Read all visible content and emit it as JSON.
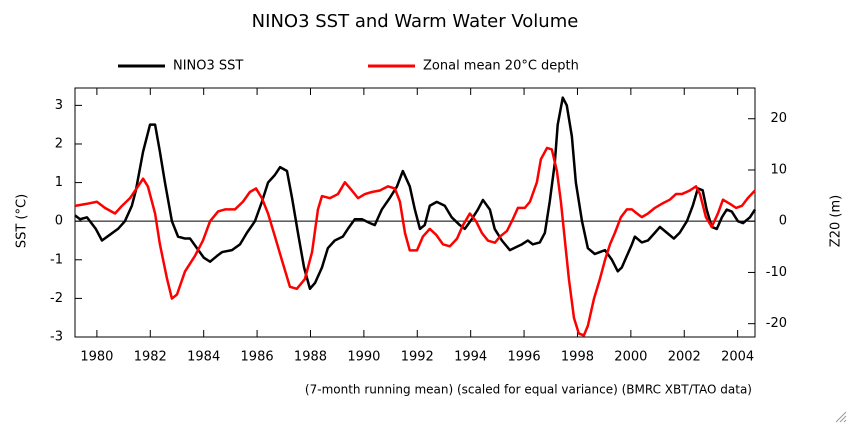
{
  "chart_data": {
    "type": "line",
    "title": "NINO3 SST and Warm Water Volume",
    "y_label": "SST (°C)",
    "y2_label": "Z20 (m)",
    "note": "(7-month running mean) (scaled for equal variance) (BMRC XBT/TAO data)",
    "xlim": [
      1979.18,
      2004.65
    ],
    "xticks": [
      1980,
      1982,
      1984,
      1986,
      1988,
      1990,
      1992,
      1994,
      1996,
      1998,
      2000,
      2002,
      2004
    ],
    "ylim": [
      -3,
      3.45
    ],
    "yticks": [
      -3,
      -2,
      -1,
      0,
      1,
      2,
      3
    ],
    "y2lim": [
      -22.6,
      26
    ],
    "y2ticks": [
      -20,
      -10,
      0,
      10,
      20
    ],
    "zero_line": true,
    "series": [
      {
        "name": "NINO3 SST",
        "color": "#000000",
        "x": [
          1979.18,
          1979.37,
          1979.63,
          1979.96,
          1980.19,
          1980.49,
          1980.79,
          1981.05,
          1981.31,
          1981.46,
          1981.73,
          1981.99,
          1982.18,
          1982.36,
          1982.55,
          1982.81,
          1983.04,
          1983.3,
          1983.49,
          1983.75,
          1984.01,
          1984.24,
          1984.5,
          1984.69,
          1985.06,
          1985.36,
          1985.62,
          1985.92,
          1986.18,
          1986.41,
          1986.67,
          1986.86,
          1987.12,
          1987.31,
          1987.53,
          1987.76,
          1987.98,
          1988.17,
          1988.43,
          1988.65,
          1988.91,
          1989.21,
          1989.4,
          1989.66,
          1989.93,
          1990.23,
          1990.41,
          1990.67,
          1990.97,
          1991.24,
          1991.46,
          1991.72,
          1991.91,
          1992.1,
          1992.28,
          1992.47,
          1992.73,
          1993.03,
          1993.29,
          1993.59,
          1993.78,
          1994.04,
          1994.27,
          1994.46,
          1994.72,
          1994.9,
          1995.17,
          1995.47,
          1995.77,
          1995.92,
          1996.14,
          1996.33,
          1996.59,
          1996.78,
          1996.96,
          1997.15,
          1997.26,
          1997.45,
          1997.6,
          1997.79,
          1997.94,
          1998.17,
          1998.39,
          1998.65,
          1998.84,
          1999.03,
          1999.29,
          1999.51,
          1999.66,
          1999.85,
          2000.04,
          2000.15,
          2000.41,
          2000.64,
          2000.9,
          2001.09,
          2001.35,
          2001.61,
          2001.83,
          2002.1,
          2002.32,
          2002.51,
          2002.69,
          2002.84,
          2003.03,
          2003.22,
          2003.41,
          2003.59,
          2003.78,
          2004.01,
          2004.2,
          2004.46,
          2004.65
        ],
        "values": [
          0.15,
          0.05,
          0.1,
          -0.2,
          -0.5,
          -0.35,
          -0.2,
          0.0,
          0.4,
          0.8,
          1.8,
          2.5,
          2.5,
          1.8,
          1.0,
          0.0,
          -0.4,
          -0.45,
          -0.45,
          -0.7,
          -0.95,
          -1.05,
          -0.9,
          -0.8,
          -0.75,
          -0.6,
          -0.3,
          0.0,
          0.5,
          1.0,
          1.2,
          1.4,
          1.3,
          0.6,
          -0.3,
          -1.2,
          -1.75,
          -1.6,
          -1.2,
          -0.7,
          -0.5,
          -0.4,
          -0.2,
          0.05,
          0.05,
          -0.05,
          -0.1,
          0.3,
          0.6,
          0.9,
          1.3,
          0.9,
          0.3,
          -0.2,
          -0.1,
          0.4,
          0.5,
          0.4,
          0.1,
          -0.1,
          -0.2,
          0.05,
          0.3,
          0.55,
          0.3,
          -0.2,
          -0.5,
          -0.75,
          -0.65,
          -0.6,
          -0.5,
          -0.6,
          -0.55,
          -0.3,
          0.5,
          1.5,
          2.5,
          3.2,
          3.0,
          2.2,
          1.0,
          0.0,
          -0.7,
          -0.85,
          -0.8,
          -0.75,
          -1.0,
          -1.3,
          -1.2,
          -0.9,
          -0.6,
          -0.4,
          -0.55,
          -0.5,
          -0.3,
          -0.15,
          -0.3,
          -0.45,
          -0.3,
          0.0,
          0.4,
          0.85,
          0.8,
          0.3,
          -0.15,
          -0.2,
          0.1,
          0.3,
          0.25,
          0.0,
          -0.05,
          0.1,
          0.3
        ]
      },
      {
        "name": "Zonal mean 20°C depth",
        "color": "#ff0000",
        "axis": "y2",
        "x": [
          1979.18,
          1979.63,
          1980.0,
          1980.3,
          1980.68,
          1980.94,
          1981.24,
          1981.54,
          1981.73,
          1981.91,
          1982.18,
          1982.36,
          1982.63,
          1982.81,
          1983.0,
          1983.3,
          1983.67,
          1983.97,
          1984.24,
          1984.54,
          1984.8,
          1985.17,
          1985.47,
          1985.73,
          1985.96,
          1986.18,
          1986.41,
          1986.67,
          1986.93,
          1987.23,
          1987.49,
          1987.79,
          1988.06,
          1988.28,
          1988.43,
          1988.73,
          1989.03,
          1989.29,
          1989.55,
          1989.78,
          1990.04,
          1990.3,
          1990.6,
          1990.9,
          1991.16,
          1991.35,
          1991.54,
          1991.72,
          1991.99,
          1992.21,
          1992.47,
          1992.7,
          1992.96,
          1993.22,
          1993.49,
          1993.71,
          1993.97,
          1994.2,
          1994.42,
          1994.65,
          1994.91,
          1995.1,
          1995.36,
          1995.58,
          1995.77,
          1996.03,
          1996.22,
          1996.48,
          1996.63,
          1996.86,
          1997.04,
          1997.23,
          1997.38,
          1997.53,
          1997.68,
          1997.87,
          1998.05,
          1998.24,
          1998.39,
          1998.62,
          1998.84,
          1999.03,
          1999.22,
          1999.4,
          1999.63,
          1999.85,
          2000.04,
          2000.23,
          2000.41,
          2000.64,
          2000.9,
          2001.16,
          2001.46,
          2001.69,
          2001.91,
          2002.21,
          2002.44,
          2002.59,
          2002.81,
          2003.03,
          2003.26,
          2003.45,
          2003.71,
          2003.94,
          2004.16,
          2004.38,
          2004.65
        ],
        "values": [
          3.0,
          3.4,
          3.8,
          2.6,
          1.5,
          3.0,
          4.5,
          6.8,
          8.3,
          6.8,
          1.5,
          -4.5,
          -11.3,
          -15.1,
          -14.3,
          -9.8,
          -6.8,
          -3.8,
          0,
          1.9,
          2.3,
          2.3,
          3.8,
          5.7,
          6.4,
          4.5,
          1.5,
          -3.0,
          -7.6,
          -12.8,
          -13.2,
          -11.3,
          -6.0,
          2.3,
          4.9,
          4.5,
          5.3,
          7.6,
          6.0,
          4.5,
          5.3,
          5.7,
          6.0,
          6.8,
          6.4,
          3.8,
          -2.3,
          -5.7,
          -5.7,
          -3.0,
          -1.5,
          -2.6,
          -4.5,
          -4.9,
          -3.4,
          -0.8,
          1.5,
          0,
          -2.3,
          -3.8,
          -4.2,
          -3.0,
          -1.9,
          0.4,
          2.6,
          2.6,
          3.8,
          7.6,
          12.1,
          14.3,
          14.0,
          9.8,
          3.8,
          -3.8,
          -11.3,
          -18.9,
          -21.9,
          -22.3,
          -20.4,
          -15.1,
          -11.3,
          -7.6,
          -4.5,
          -2.3,
          0.8,
          2.3,
          2.3,
          1.5,
          0.8,
          1.5,
          2.6,
          3.4,
          4.2,
          5.3,
          5.3,
          6.0,
          6.8,
          5.3,
          0.8,
          -1.1,
          1.5,
          4.2,
          3.4,
          2.6,
          3.0,
          4.5,
          6.0
        ]
      }
    ]
  }
}
